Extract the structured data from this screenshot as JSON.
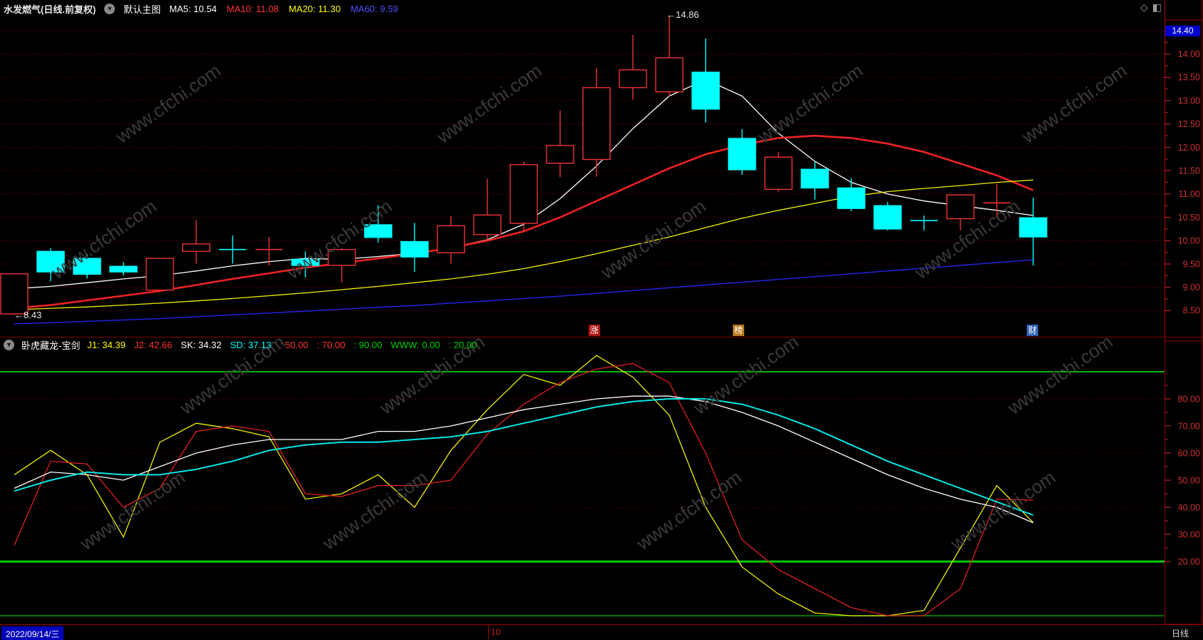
{
  "header": {
    "title": "水发燃气(日线.前复权)",
    "layout_label": "默认主图",
    "ma_labels": [
      {
        "text": "MA5: 10.54",
        "color": "#ffffff"
      },
      {
        "text": "MA10: 11.08",
        "color": "#ff3232"
      },
      {
        "text": "MA20: 11.30",
        "color": "#ffff00"
      },
      {
        "text": "MA60: 9.59",
        "color": "#4f4fff"
      }
    ],
    "window_icons": [
      "diamond",
      "split-window"
    ]
  },
  "annotations": {
    "high_label": "←14.86",
    "low_label": "←8.43"
  },
  "event_markers": [
    {
      "text": "涨",
      "x": 833,
      "bg": "#b01515"
    },
    {
      "text": "榜",
      "x": 1035,
      "bg": "#b8791f"
    },
    {
      "text": "财",
      "x": 1447,
      "bg": "#2f62b5"
    }
  ],
  "indicator_header": {
    "name": "卧虎藏龙-宝剑",
    "values": [
      {
        "text": "J1: 34.39",
        "color": "#ffff00"
      },
      {
        "text": "J2: 42.66",
        "color": "#ff3232"
      },
      {
        "text": "SK: 34.32",
        "color": "#ffffff"
      },
      {
        "text": "SD: 37.13",
        "color": "#00ffff"
      },
      {
        "text": ": 50.00",
        "color": "#ff3232"
      },
      {
        "text": ": 70.00",
        "color": "#ff3232"
      },
      {
        "text": ": 90.00",
        "color": "#00cc00"
      },
      {
        "text": "WWW: 0.00",
        "color": "#00cc00"
      },
      {
        "text": ": 20.00",
        "color": "#00cc00"
      }
    ]
  },
  "status_bar": {
    "date": "2022/09/14/三",
    "month_label": "10",
    "period_label": "日线"
  },
  "axis": {
    "current_price_label": "14.40",
    "label_color": "#cc3333",
    "main_ticks": [
      14.0,
      13.5,
      13.0,
      12.5,
      12.0,
      11.5,
      11.0,
      10.5,
      10.0,
      9.5,
      9.0,
      8.5
    ],
    "indicator_ticks": [
      80,
      70,
      60,
      50,
      40,
      30,
      20
    ]
  },
  "watermark_text": "www.cfchi.com",
  "colors": {
    "up": "#ee3333",
    "down": "#00ffff",
    "grid": "#a00000",
    "border": "#7a0000",
    "green_line": "#00b400"
  },
  "chart_data": [
    {
      "type": "candlestick",
      "title": "水发燃气 日线 前复权 主图",
      "y_ticks": [
        8.5,
        9.0,
        9.5,
        10.0,
        10.5,
        11.0,
        11.5,
        12.0,
        12.5,
        13.0,
        13.5,
        14.0
      ],
      "y_range": [
        7.9,
        14.8
      ],
      "grid": "dotted-red",
      "high_point": 14.86,
      "low_point": 8.43,
      "candles": [
        {
          "o": 8.43,
          "h": 9.3,
          "l": 8.41,
          "c": 9.29,
          "dir": "u"
        },
        {
          "o": 9.77,
          "h": 9.84,
          "l": 9.13,
          "c": 9.33,
          "dir": "d"
        },
        {
          "o": 9.62,
          "h": 9.71,
          "l": 9.19,
          "c": 9.28,
          "dir": "d"
        },
        {
          "o": 9.45,
          "h": 9.54,
          "l": 9.25,
          "c": 9.33,
          "dir": "d"
        },
        {
          "o": 8.94,
          "h": 9.64,
          "l": 8.92,
          "c": 9.62,
          "dir": "u"
        },
        {
          "o": 9.77,
          "h": 10.44,
          "l": 9.51,
          "c": 9.93,
          "dir": "u"
        },
        {
          "o": 9.81,
          "h": 10.11,
          "l": 9.51,
          "c": 9.81,
          "dir": "d"
        },
        {
          "o": 9.81,
          "h": 10.08,
          "l": 9.47,
          "c": 9.81,
          "dir": "u"
        },
        {
          "o": 9.6,
          "h": 9.77,
          "l": 9.21,
          "c": 9.47,
          "dir": "d"
        },
        {
          "o": 9.47,
          "h": 9.84,
          "l": 9.1,
          "c": 9.81,
          "dir": "u"
        },
        {
          "o": 10.34,
          "h": 10.76,
          "l": 9.96,
          "c": 10.07,
          "dir": "d"
        },
        {
          "o": 9.98,
          "h": 10.38,
          "l": 9.33,
          "c": 9.65,
          "dir": "d"
        },
        {
          "o": 9.74,
          "h": 10.53,
          "l": 9.51,
          "c": 10.32,
          "dir": "u"
        },
        {
          "o": 10.13,
          "h": 11.33,
          "l": 10.0,
          "c": 10.55,
          "dir": "u"
        },
        {
          "o": 10.37,
          "h": 11.7,
          "l": 10.2,
          "c": 11.63,
          "dir": "u"
        },
        {
          "o": 11.66,
          "h": 12.79,
          "l": 11.36,
          "c": 12.04,
          "dir": "u"
        },
        {
          "o": 11.74,
          "h": 13.7,
          "l": 11.37,
          "c": 13.28,
          "dir": "u"
        },
        {
          "o": 13.28,
          "h": 14.41,
          "l": 13.02,
          "c": 13.66,
          "dir": "u"
        },
        {
          "o": 13.19,
          "h": 14.86,
          "l": 13.09,
          "c": 13.92,
          "dir": "u"
        },
        {
          "o": 13.61,
          "h": 14.33,
          "l": 12.53,
          "c": 12.82,
          "dir": "d"
        },
        {
          "o": 12.19,
          "h": 12.39,
          "l": 11.41,
          "c": 11.52,
          "dir": "d"
        },
        {
          "o": 11.1,
          "h": 11.9,
          "l": 11.05,
          "c": 11.79,
          "dir": "u"
        },
        {
          "o": 11.53,
          "h": 11.7,
          "l": 10.88,
          "c": 11.13,
          "dir": "d"
        },
        {
          "o": 11.13,
          "h": 11.34,
          "l": 10.63,
          "c": 10.69,
          "dir": "d"
        },
        {
          "o": 10.75,
          "h": 10.83,
          "l": 10.22,
          "c": 10.25,
          "dir": "d"
        },
        {
          "o": 10.43,
          "h": 10.54,
          "l": 10.22,
          "c": 10.43,
          "dir": "d"
        },
        {
          "o": 10.47,
          "h": 10.98,
          "l": 10.22,
          "c": 10.98,
          "dir": "u"
        },
        {
          "o": 10.81,
          "h": 11.22,
          "l": 10.49,
          "c": 10.81,
          "dir": "u"
        },
        {
          "o": 10.49,
          "h": 10.92,
          "l": 9.47,
          "c": 10.08,
          "dir": "d"
        }
      ],
      "ma_series": [
        {
          "name": "MA5",
          "color": "#ffffff",
          "width": 1.3,
          "values": [
            8.97,
            9.02,
            9.1,
            9.18,
            9.25,
            9.35,
            9.46,
            9.55,
            9.62,
            9.6,
            9.66,
            9.73,
            9.85,
            10.02,
            10.35,
            10.9,
            11.6,
            12.4,
            13.1,
            13.45,
            13.1,
            12.3,
            11.7,
            11.25,
            11.0,
            10.85,
            10.75,
            10.65,
            10.54
          ]
        },
        {
          "name": "MA10",
          "color": "#ee2222",
          "width": 2.6,
          "values": [
            8.55,
            8.62,
            8.72,
            8.82,
            8.92,
            9.05,
            9.18,
            9.3,
            9.42,
            9.52,
            9.62,
            9.72,
            9.85,
            10.0,
            10.2,
            10.5,
            10.85,
            11.2,
            11.55,
            11.85,
            12.05,
            12.2,
            12.25,
            12.2,
            12.08,
            11.9,
            11.65,
            11.4,
            11.08
          ]
        },
        {
          "name": "MA20",
          "color": "#f0f000",
          "width": 1.3,
          "values": [
            8.52,
            8.55,
            8.58,
            8.62,
            8.66,
            8.71,
            8.76,
            8.82,
            8.88,
            8.95,
            9.02,
            9.1,
            9.18,
            9.28,
            9.4,
            9.55,
            9.72,
            9.9,
            10.08,
            10.28,
            10.48,
            10.65,
            10.8,
            10.95,
            11.05,
            11.12,
            11.18,
            11.25,
            11.3
          ]
        },
        {
          "name": "MA60",
          "color": "#2222dd",
          "width": 1.5,
          "values": [
            8.22,
            8.24,
            8.27,
            8.3,
            8.33,
            8.37,
            8.41,
            8.45,
            8.49,
            8.53,
            8.57,
            8.61,
            8.66,
            8.71,
            8.76,
            8.81,
            8.87,
            8.93,
            8.99,
            9.05,
            9.11,
            9.17,
            9.23,
            9.29,
            9.35,
            9.41,
            9.47,
            9.53,
            9.59
          ]
        }
      ]
    },
    {
      "type": "line",
      "title": "卧虎藏龙-宝剑 指标",
      "y_ticks": [
        80,
        70,
        60,
        50,
        40,
        30,
        20
      ],
      "y_range": [
        -5,
        100
      ],
      "reference_lines": [
        {
          "value": 90,
          "color": "#00b400",
          "width": 2
        },
        {
          "value": 20,
          "color": "#00c800",
          "width": 3
        },
        {
          "value": 0,
          "color": "#009600",
          "width": 1.5
        }
      ],
      "grid_dotted": [
        80,
        60,
        40
      ],
      "grid_sparse": [
        70,
        50,
        30
      ],
      "series": [
        {
          "name": "J1",
          "color": "#f0f000",
          "width": 1.3,
          "values": [
            52,
            61,
            52,
            29,
            64,
            71,
            69,
            66,
            43,
            45,
            52,
            40,
            61,
            76,
            89,
            85,
            96,
            88,
            74,
            40,
            18,
            8,
            1,
            0,
            0,
            2,
            25,
            48,
            34.39
          ]
        },
        {
          "name": "J2",
          "color": "#e02020",
          "width": 1.3,
          "values": [
            26,
            57,
            56,
            40,
            47,
            68,
            70,
            68,
            45,
            44,
            48,
            48,
            50,
            67,
            78,
            86,
            91,
            93,
            86,
            60,
            28,
            17,
            10,
            3,
            0,
            0,
            10,
            43,
            42.66
          ]
        },
        {
          "name": "SK",
          "color": "#ffffff",
          "width": 1.3,
          "values": [
            47,
            53,
            52,
            50,
            55,
            60,
            63,
            65,
            65,
            65,
            68,
            68,
            70,
            73,
            76,
            78,
            80,
            81,
            81,
            79,
            75,
            70,
            64,
            58,
            52,
            47,
            43,
            40,
            34.32
          ]
        },
        {
          "name": "SD",
          "color": "#00e5e5",
          "width": 2,
          "values": [
            46,
            50,
            53,
            52,
            52,
            54,
            57,
            61,
            63,
            64,
            64,
            65,
            66,
            68,
            71,
            74,
            77,
            79,
            80,
            80,
            78,
            74,
            69,
            63,
            57,
            52,
            47,
            42,
            37.13
          ]
        }
      ]
    }
  ]
}
